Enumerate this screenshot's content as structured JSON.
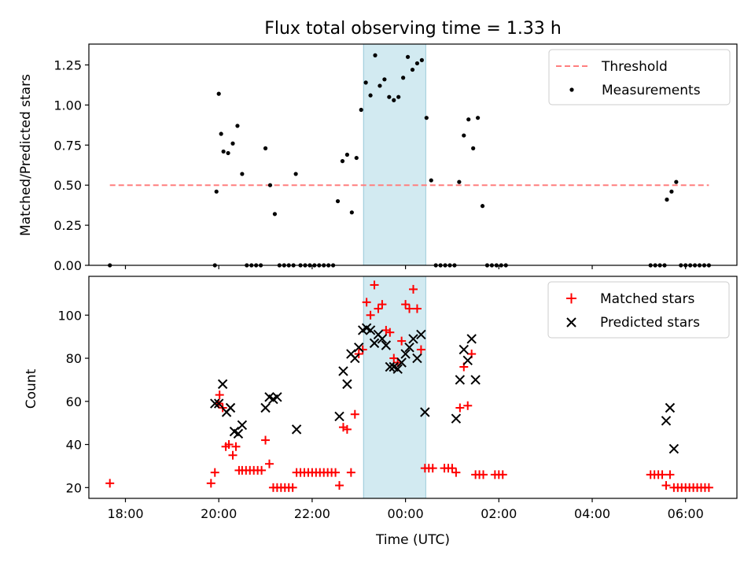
{
  "title": "Flux total observing time = 1.33 h",
  "colors": {
    "threshold": "#ff7f7f",
    "measurement": "#000000",
    "matched": "#ff0000",
    "predicted": "#000000",
    "highlight": "#add8e6"
  },
  "chart_data": [
    {
      "type": "scatter",
      "name": "ratio",
      "xlabel": "",
      "ylabel": "Matched/Predicted stars",
      "xlim": [
        "17:13",
        "07:06"
      ],
      "ylim": [
        0,
        1.38
      ],
      "yticks": [
        "0.00",
        "0.25",
        "0.50",
        "0.75",
        "1.00",
        "1.25"
      ],
      "highlight_span": [
        "23:06",
        "00:26"
      ],
      "legend_position": "upper right",
      "series": [
        {
          "name": "Threshold",
          "kind": "dashed-line",
          "x": [
            "17:40",
            "06:30"
          ],
          "y": [
            0.5,
            0.5
          ]
        },
        {
          "name": "Measurements",
          "kind": "dots",
          "points": [
            [
              "17:40",
              0
            ],
            [
              "19:55",
              0
            ],
            [
              "19:57",
              0.46
            ],
            [
              "20:00",
              1.07
            ],
            [
              "20:03",
              0.82
            ],
            [
              "20:06",
              0.71
            ],
            [
              "20:12",
              0.7
            ],
            [
              "20:18",
              0.76
            ],
            [
              "20:24",
              0.87
            ],
            [
              "20:30",
              0.57
            ],
            [
              "20:36",
              0
            ],
            [
              "20:42",
              0
            ],
            [
              "20:48",
              0
            ],
            [
              "20:54",
              0
            ],
            [
              "21:00",
              0.73
            ],
            [
              "21:06",
              0.5
            ],
            [
              "21:12",
              0.32
            ],
            [
              "21:18",
              0
            ],
            [
              "21:24",
              0
            ],
            [
              "21:30",
              0
            ],
            [
              "21:36",
              0
            ],
            [
              "21:39",
              0.57
            ],
            [
              "21:45",
              0
            ],
            [
              "21:51",
              0
            ],
            [
              "21:57",
              0
            ],
            [
              "22:03",
              0
            ],
            [
              "22:09",
              0
            ],
            [
              "22:15",
              0
            ],
            [
              "22:21",
              0
            ],
            [
              "22:27",
              0
            ],
            [
              "22:33",
              0.4
            ],
            [
              "22:39",
              0.65
            ],
            [
              "22:45",
              0.69
            ],
            [
              "22:51",
              0.33
            ],
            [
              "22:57",
              0.67
            ],
            [
              "23:03",
              0.97
            ],
            [
              "23:09",
              1.14
            ],
            [
              "23:15",
              1.06
            ],
            [
              "23:21",
              1.31
            ],
            [
              "23:27",
              1.12
            ],
            [
              "23:33",
              1.16
            ],
            [
              "23:39",
              1.05
            ],
            [
              "23:45",
              1.03
            ],
            [
              "23:51",
              1.05
            ],
            [
              "23:57",
              1.17
            ],
            [
              "00:03",
              1.3
            ],
            [
              "00:09",
              1.22
            ],
            [
              "00:15",
              1.26
            ],
            [
              "00:21",
              1.28
            ],
            [
              "00:27",
              0.92
            ],
            [
              "00:33",
              0.53
            ],
            [
              "00:39",
              0
            ],
            [
              "00:45",
              0
            ],
            [
              "00:51",
              0
            ],
            [
              "00:57",
              0
            ],
            [
              "01:03",
              0
            ],
            [
              "01:09",
              0.52
            ],
            [
              "01:15",
              0.81
            ],
            [
              "01:21",
              0.91
            ],
            [
              "01:27",
              0.73
            ],
            [
              "01:33",
              0.92
            ],
            [
              "01:39",
              0.37
            ],
            [
              "01:45",
              0
            ],
            [
              "01:51",
              0
            ],
            [
              "01:57",
              0
            ],
            [
              "02:03",
              0
            ],
            [
              "02:09",
              0
            ],
            [
              "05:15",
              0
            ],
            [
              "05:21",
              0
            ],
            [
              "05:27",
              0
            ],
            [
              "05:33",
              0
            ],
            [
              "05:36",
              0.41
            ],
            [
              "05:42",
              0.46
            ],
            [
              "05:48",
              0.52
            ],
            [
              "05:54",
              0
            ],
            [
              "06:00",
              0
            ],
            [
              "06:06",
              0
            ],
            [
              "06:12",
              0
            ],
            [
              "06:18",
              0
            ],
            [
              "06:24",
              0
            ],
            [
              "06:30",
              0
            ]
          ]
        }
      ]
    },
    {
      "type": "scatter",
      "name": "counts",
      "xlabel": "Time (UTC)",
      "ylabel": "Count",
      "xlim": [
        "17:13",
        "07:06"
      ],
      "ylim": [
        15,
        118
      ],
      "yticks": [
        "20",
        "40",
        "60",
        "80",
        "100"
      ],
      "xticks": [
        "18:00",
        "20:00",
        "22:00",
        "00:00",
        "02:00",
        "04:00",
        "06:00"
      ],
      "highlight_span": [
        "23:06",
        "00:26"
      ],
      "legend_position": "upper right",
      "series": [
        {
          "name": "Matched stars",
          "marker": "+",
          "points": [
            [
              "17:40",
              22
            ],
            [
              "19:50",
              22
            ],
            [
              "19:55",
              27
            ],
            [
              "20:00",
              59
            ],
            [
              "20:01",
              63
            ],
            [
              "20:05",
              57
            ],
            [
              "20:09",
              39
            ],
            [
              "20:13",
              40
            ],
            [
              "20:18",
              35
            ],
            [
              "20:22",
              39
            ],
            [
              "20:26",
              28
            ],
            [
              "20:30",
              28
            ],
            [
              "20:35",
              28
            ],
            [
              "20:40",
              28
            ],
            [
              "20:45",
              28
            ],
            [
              "20:50",
              28
            ],
            [
              "20:55",
              28
            ],
            [
              "21:00",
              42
            ],
            [
              "21:05",
              31
            ],
            [
              "21:10",
              20
            ],
            [
              "21:15",
              20
            ],
            [
              "21:20",
              20
            ],
            [
              "21:25",
              20
            ],
            [
              "21:30",
              20
            ],
            [
              "21:35",
              20
            ],
            [
              "21:40",
              27
            ],
            [
              "21:45",
              27
            ],
            [
              "21:50",
              27
            ],
            [
              "21:55",
              27
            ],
            [
              "22:00",
              27
            ],
            [
              "22:05",
              27
            ],
            [
              "22:10",
              27
            ],
            [
              "22:15",
              27
            ],
            [
              "22:20",
              27
            ],
            [
              "22:25",
              27
            ],
            [
              "22:30",
              27
            ],
            [
              "22:35",
              21
            ],
            [
              "22:40",
              48
            ],
            [
              "22:45",
              47
            ],
            [
              "22:50",
              27
            ],
            [
              "22:55",
              54
            ],
            [
              "23:00",
              82
            ],
            [
              "23:05",
              84
            ],
            [
              "23:10",
              106
            ],
            [
              "23:15",
              100
            ],
            [
              "23:20",
              114
            ],
            [
              "23:25",
              103
            ],
            [
              "23:30",
              105
            ],
            [
              "23:35",
              93
            ],
            [
              "23:40",
              92
            ],
            [
              "23:45",
              80
            ],
            [
              "23:50",
              78
            ],
            [
              "23:55",
              88
            ],
            [
              "00:00",
              105
            ],
            [
              "00:05",
              103
            ],
            [
              "00:10",
              112
            ],
            [
              "00:15",
              103
            ],
            [
              "00:20",
              84
            ],
            [
              "00:25",
              29
            ],
            [
              "00:30",
              29
            ],
            [
              "00:35",
              29
            ],
            [
              "00:50",
              29
            ],
            [
              "00:55",
              29
            ],
            [
              "01:00",
              29
            ],
            [
              "01:05",
              27
            ],
            [
              "01:10",
              57
            ],
            [
              "01:15",
              76
            ],
            [
              "01:20",
              58
            ],
            [
              "01:25",
              82
            ],
            [
              "01:30",
              26
            ],
            [
              "01:35",
              26
            ],
            [
              "01:40",
              26
            ],
            [
              "01:55",
              26
            ],
            [
              "02:00",
              26
            ],
            [
              "02:05",
              26
            ],
            [
              "05:15",
              26
            ],
            [
              "05:20",
              26
            ],
            [
              "05:25",
              26
            ],
            [
              "05:30",
              26
            ],
            [
              "05:35",
              21
            ],
            [
              "05:40",
              26
            ],
            [
              "05:45",
              20
            ],
            [
              "05:50",
              20
            ],
            [
              "05:55",
              20
            ],
            [
              "06:00",
              20
            ],
            [
              "06:05",
              20
            ],
            [
              "06:10",
              20
            ],
            [
              "06:15",
              20
            ],
            [
              "06:20",
              20
            ],
            [
              "06:25",
              20
            ],
            [
              "06:30",
              20
            ]
          ]
        },
        {
          "name": "Predicted stars",
          "marker": "x",
          "points": [
            [
              "19:55",
              59
            ],
            [
              "20:00",
              59
            ],
            [
              "20:05",
              68
            ],
            [
              "20:10",
              55
            ],
            [
              "20:15",
              57
            ],
            [
              "20:20",
              46
            ],
            [
              "20:25",
              45
            ],
            [
              "20:30",
              49
            ],
            [
              "21:00",
              57
            ],
            [
              "21:05",
              62
            ],
            [
              "21:10",
              61
            ],
            [
              "21:15",
              62
            ],
            [
              "21:40",
              47
            ],
            [
              "22:35",
              53
            ],
            [
              "22:40",
              74
            ],
            [
              "22:45",
              68
            ],
            [
              "22:50",
              82
            ],
            [
              "22:55",
              80
            ],
            [
              "23:00",
              85
            ],
            [
              "23:05",
              93
            ],
            [
              "23:10",
              94
            ],
            [
              "23:15",
              93
            ],
            [
              "23:20",
              87
            ],
            [
              "23:25",
              91
            ],
            [
              "23:30",
              89
            ],
            [
              "23:35",
              86
            ],
            [
              "23:40",
              76
            ],
            [
              "23:45",
              76
            ],
            [
              "23:50",
              75
            ],
            [
              "23:55",
              78
            ],
            [
              "00:00",
              82
            ],
            [
              "00:05",
              85
            ],
            [
              "00:10",
              89
            ],
            [
              "00:15",
              80
            ],
            [
              "00:20",
              91
            ],
            [
              "00:25",
              55
            ],
            [
              "01:05",
              52
            ],
            [
              "01:10",
              70
            ],
            [
              "01:15",
              84
            ],
            [
              "01:20",
              79
            ],
            [
              "01:25",
              89
            ],
            [
              "01:30",
              70
            ],
            [
              "05:35",
              51
            ],
            [
              "05:40",
              57
            ],
            [
              "05:45",
              38
            ]
          ]
        }
      ]
    }
  ]
}
